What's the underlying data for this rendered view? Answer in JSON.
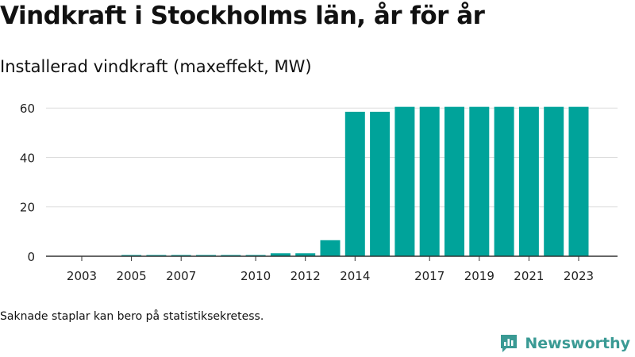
{
  "title": "Vindkraft i Stockholms län, år för år",
  "subtitle": "Installerad vindkraft (maxeffekt, MW)",
  "footnote": "Saknade staplar kan bero på statistiksekretess.",
  "brand": {
    "name": "Newsworthy",
    "icon": "newsworthy-logo-icon",
    "color": "#3a9a94"
  },
  "colors": {
    "bar": "#00a39a",
    "grid": "#dddddd",
    "axis": "#333333",
    "text": "#222222"
  },
  "chart_data": {
    "type": "bar",
    "title": "Vindkraft i Stockholms län, år för år",
    "subtitle": "Installerad vindkraft (maxeffekt, MW)",
    "xlabel": "",
    "ylabel": "",
    "categories": [
      2003,
      2004,
      2005,
      2006,
      2007,
      2008,
      2009,
      2010,
      2011,
      2012,
      2013,
      2014,
      2015,
      2016,
      2017,
      2018,
      2019,
      2020,
      2021,
      2022,
      2023
    ],
    "values": [
      null,
      null,
      0.5,
      0.5,
      0.5,
      0.5,
      0.5,
      0.5,
      1.2,
      1.2,
      6.5,
      58.5,
      58.5,
      60.5,
      60.5,
      60.5,
      60.5,
      60.5,
      60.5,
      60.5,
      60.5
    ],
    "xticks": [
      "2003",
      "2005",
      "2007",
      "2010",
      "2012",
      "2014",
      "2017",
      "2019",
      "2021",
      "2023"
    ],
    "yticks": [
      0,
      20,
      40,
      60
    ],
    "ylim": [
      0,
      62
    ],
    "grid": true,
    "legend": "none"
  }
}
